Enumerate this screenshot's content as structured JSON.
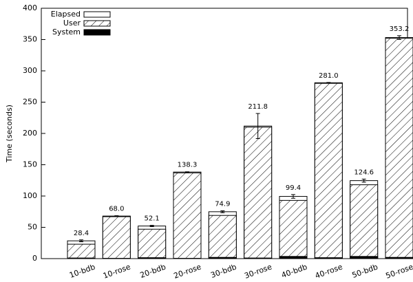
{
  "chart_data": {
    "type": "bar",
    "ylabel": "Time (seconds)",
    "categories": [
      "10-bdb",
      "10-rose",
      "20-bdb",
      "20-rose",
      "30-bdb",
      "30-rose",
      "40-bdb",
      "40-rose",
      "50-bdb",
      "50-rose"
    ],
    "series": [
      {
        "name": "Elapsed",
        "color": "#ffffff",
        "values": [
          28.4,
          68.0,
          52.1,
          138.3,
          74.9,
          211.8,
          99.4,
          281.0,
          124.6,
          353.2
        ],
        "value_labels": [
          "28.4",
          "68.0",
          "52.1",
          "138.3",
          "74.9",
          "211.8",
          "99.4",
          "281.0",
          "124.6",
          "353.2"
        ],
        "errors": [
          1.5,
          0.5,
          1,
          0.5,
          1.5,
          20,
          3,
          0.5,
          2.5,
          3
        ]
      },
      {
        "name": "User",
        "color": "#000000",
        "pattern": "hatch",
        "values": [
          23,
          67,
          47,
          137,
          69,
          210,
          93,
          280,
          118,
          352
        ]
      },
      {
        "name": "System",
        "color": "#000000",
        "values": [
          1,
          0.5,
          1.5,
          0.5,
          2,
          1,
          3.5,
          1.5,
          3.5,
          2
        ]
      }
    ],
    "ylim": [
      0,
      400
    ],
    "yticks": [
      0,
      50,
      100,
      150,
      200,
      250,
      300,
      350,
      400
    ],
    "legend": "top-left"
  }
}
